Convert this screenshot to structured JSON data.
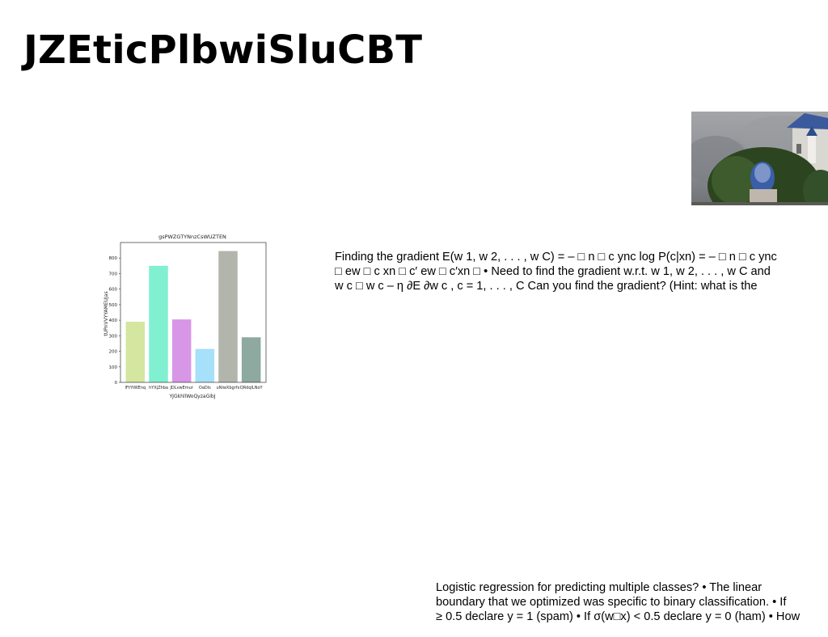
{
  "slide": {
    "title": "JZEticPlbwiSluCBT",
    "paragraph_1": [
      "Finding the gradient E(w 1, w 2, . . . , w C) = – □ n □ c ync log P(c|xn) = – □ n □ c ync",
      "□ ew □ c xn □ c′ ew □ c′xn □ • Need to find the gradient w.r.t. w 1, w 2, . . . , w C and",
      "w c □ w c – η ∂E ∂w c , c = 1, . . . , C Can you find the gradient? (Hint: what is the"
    ],
    "paragraph_2": [
      "Logistic regression for predicting multiple classes? • The linear",
      "boundary that we optimized was specific to binary classification. • If",
      "≥ 0.5 declare y = 1 (spam) • If σ(w□x) < 0.5 declare y = 0 (ham) • How"
    ],
    "photo": {
      "description_icon": "photo-icon",
      "colors": [
        "#8d8f93",
        "#4a6a3a",
        "#2f4e8f",
        "#e6e4e0"
      ]
    }
  },
  "chart_data": {
    "type": "bar",
    "title": "gsPWZGTYNnzCsWUZTEN",
    "xlabel": "YJGkhllWoQyzaGibJ",
    "ylabel": "tUPnVVYYAMEUJas",
    "categories": [
      "lFtYtWEnq",
      "hYXjZhba",
      "JDLvwEmur",
      "OaDls",
      "uNlwXbgrfx",
      "QRdqlLNoY"
    ],
    "values": [
      390,
      750,
      405,
      215,
      845,
      290
    ],
    "colors": [
      "#d4e6a0",
      "#80f0d0",
      "#d896e6",
      "#a6e0fa",
      "#b2b5ac",
      "#8ea99f"
    ],
    "yticks": [
      0,
      100,
      200,
      300,
      400,
      500,
      600,
      700,
      800
    ],
    "ylim": [
      0,
      900
    ],
    "grid": false
  }
}
